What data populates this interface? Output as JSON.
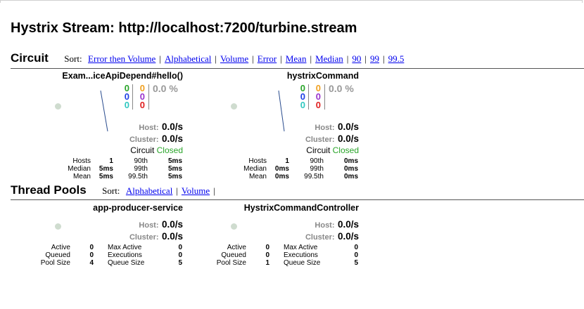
{
  "page": {
    "title": "Hystrix Stream: http://localhost:7200/turbine.stream"
  },
  "circuit_section": {
    "title": "Circuit",
    "sort_label": "Sort:",
    "sort_options": [
      "Error then Volume",
      "Alphabetical",
      "Volume",
      "Error",
      "Mean",
      "Median",
      "90",
      "99",
      "99.5"
    ]
  },
  "circuits": [
    {
      "name": "Exam...iceApiDepend#hello()",
      "counts_left": [
        "0",
        "0",
        "0"
      ],
      "counts_right": [
        "0",
        "0",
        "0"
      ],
      "error_pct": "0.0 %",
      "host_label": "Host:",
      "host_rate": "0.0/s",
      "cluster_label": "Cluster:",
      "cluster_rate": "0.0/s",
      "circuit_label": "Circuit",
      "circuit_status": "Closed",
      "stats": {
        "hosts_label": "Hosts",
        "hosts": "1",
        "median_label": "Median",
        "median": "5ms",
        "mean_label": "Mean",
        "mean": "5ms",
        "p90_label": "90th",
        "p90": "5ms",
        "p99_label": "99th",
        "p99": "5ms",
        "p995_label": "99.5th",
        "p995": "5ms"
      }
    },
    {
      "name": "hystrixCommand",
      "counts_left": [
        "0",
        "0",
        "0"
      ],
      "counts_right": [
        "0",
        "0",
        "0"
      ],
      "error_pct": "0.0 %",
      "host_label": "Host:",
      "host_rate": "0.0/s",
      "cluster_label": "Cluster:",
      "cluster_rate": "0.0/s",
      "circuit_label": "Circuit",
      "circuit_status": "Closed",
      "stats": {
        "hosts_label": "Hosts",
        "hosts": "1",
        "median_label": "Median",
        "median": "0ms",
        "mean_label": "Mean",
        "mean": "0ms",
        "p90_label": "90th",
        "p90": "0ms",
        "p99_label": "99th",
        "p99": "0ms",
        "p995_label": "99.5th",
        "p995": "0ms"
      }
    }
  ],
  "thread_pool_section": {
    "title": "Thread Pools",
    "sort_label": "Sort:",
    "sort_options": [
      "Alphabetical",
      "Volume"
    ]
  },
  "thread_pools": [
    {
      "name": "app-producer-service",
      "host_label": "Host:",
      "host_rate": "0.0/s",
      "cluster_label": "Cluster:",
      "cluster_rate": "0.0/s",
      "stats": {
        "active_label": "Active",
        "active": "0",
        "queued_label": "Queued",
        "queued": "0",
        "pool_size_label": "Pool Size",
        "pool_size": "4",
        "max_active_label": "Max Active",
        "max_active": "0",
        "executions_label": "Executions",
        "executions": "0",
        "queue_size_label": "Queue Size",
        "queue_size": "5"
      }
    },
    {
      "name": "HystrixCommandController",
      "host_label": "Host:",
      "host_rate": "0.0/s",
      "cluster_label": "Cluster:",
      "cluster_rate": "0.0/s",
      "stats": {
        "active_label": "Active",
        "active": "0",
        "queued_label": "Queued",
        "queued": "0",
        "pool_size_label": "Pool Size",
        "pool_size": "1",
        "max_active_label": "Max Active",
        "max_active": "0",
        "executions_label": "Executions",
        "executions": "0",
        "queue_size_label": "Queue Size",
        "queue_size": "5"
      }
    }
  ]
}
